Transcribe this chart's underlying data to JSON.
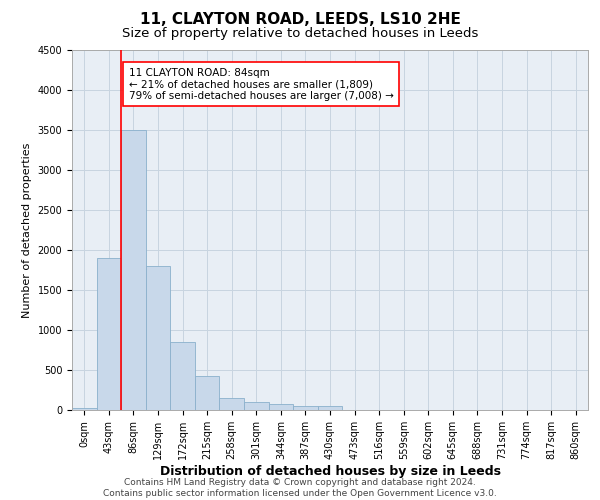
{
  "title": "11, CLAYTON ROAD, LEEDS, LS10 2HE",
  "subtitle": "Size of property relative to detached houses in Leeds",
  "xlabel": "Distribution of detached houses by size in Leeds",
  "ylabel": "Number of detached properties",
  "categories": [
    "0sqm",
    "43sqm",
    "86sqm",
    "129sqm",
    "172sqm",
    "215sqm",
    "258sqm",
    "301sqm",
    "344sqm",
    "387sqm",
    "430sqm",
    "473sqm",
    "516sqm",
    "559sqm",
    "602sqm",
    "645sqm",
    "688sqm",
    "731sqm",
    "774sqm",
    "817sqm",
    "860sqm"
  ],
  "bar_heights": [
    30,
    1900,
    3500,
    1800,
    850,
    430,
    150,
    100,
    70,
    55,
    50,
    0,
    0,
    0,
    0,
    0,
    0,
    0,
    0,
    0,
    0
  ],
  "bar_color": "#c8d8ea",
  "bar_edge_color": "#8ab0cc",
  "property_line_x": 1.5,
  "annotation_text": "11 CLAYTON ROAD: 84sqm\n← 21% of detached houses are smaller (1,809)\n79% of semi-detached houses are larger (7,008) →",
  "annotation_box_color": "white",
  "annotation_box_edge_color": "red",
  "ylim": [
    0,
    4500
  ],
  "yticks": [
    0,
    500,
    1000,
    1500,
    2000,
    2500,
    3000,
    3500,
    4000,
    4500
  ],
  "grid_color": "#c8d4e0",
  "background_color": "#e8eef5",
  "footer_line1": "Contains HM Land Registry data © Crown copyright and database right 2024.",
  "footer_line2": "Contains public sector information licensed under the Open Government Licence v3.0.",
  "title_fontsize": 11,
  "subtitle_fontsize": 9.5,
  "xlabel_fontsize": 9,
  "ylabel_fontsize": 8,
  "tick_fontsize": 7,
  "annotation_fontsize": 7.5,
  "footer_fontsize": 6.5
}
